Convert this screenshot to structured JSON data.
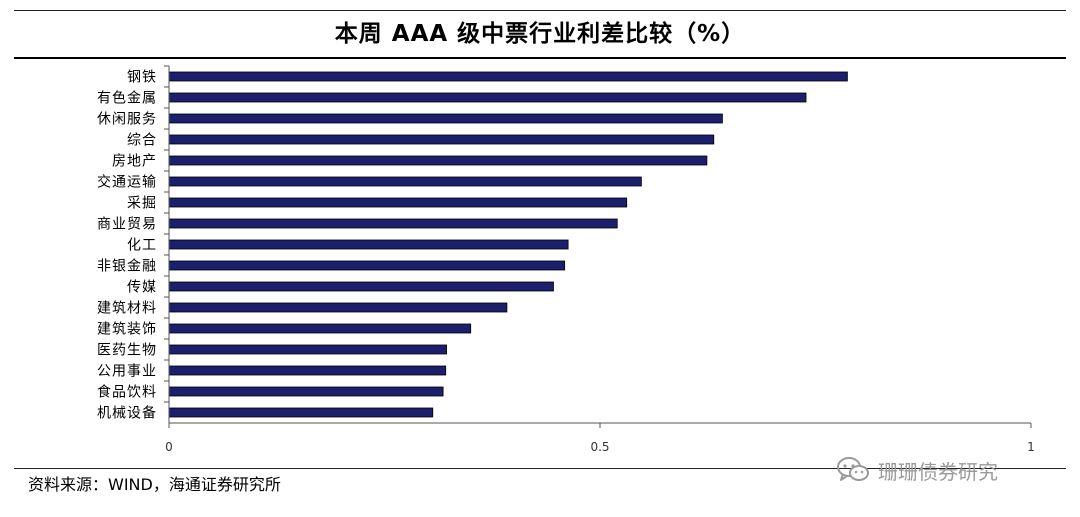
{
  "header": {
    "title": "本周 AAA 级中票行业利差比较（%）"
  },
  "footer": {
    "source": "资料来源：WIND，海通证券研究所",
    "watermark": "珊珊债券研究",
    "watermark_icon": "wechat-icon"
  },
  "colors": {
    "bar": "#1c1f6b",
    "bar_edge": "#000000",
    "axis": "#555555"
  },
  "chart_data": {
    "type": "bar",
    "orientation": "horizontal",
    "title": "本周 AAA 级中票行业利差比较（%）",
    "categories": [
      "钢铁",
      "有色金属",
      "休闲服务",
      "综合",
      "房地产",
      "交通运输",
      "采掘",
      "商业贸易",
      "化工",
      "非银金融",
      "传媒",
      "建筑材料",
      "建筑装饰",
      "医药生物",
      "公用事业",
      "食品饮料",
      "机械设备"
    ],
    "values": [
      0.787,
      0.739,
      0.642,
      0.632,
      0.624,
      0.548,
      0.531,
      0.52,
      0.463,
      0.459,
      0.446,
      0.392,
      0.35,
      0.322,
      0.321,
      0.318,
      0.306
    ],
    "xlim": [
      0,
      1
    ],
    "xticks": [
      0,
      0.5,
      1
    ],
    "xtick_labels": [
      "0",
      "0.5",
      "1"
    ],
    "xlabel": "",
    "ylabel": "",
    "grid": false,
    "legend": "none"
  }
}
